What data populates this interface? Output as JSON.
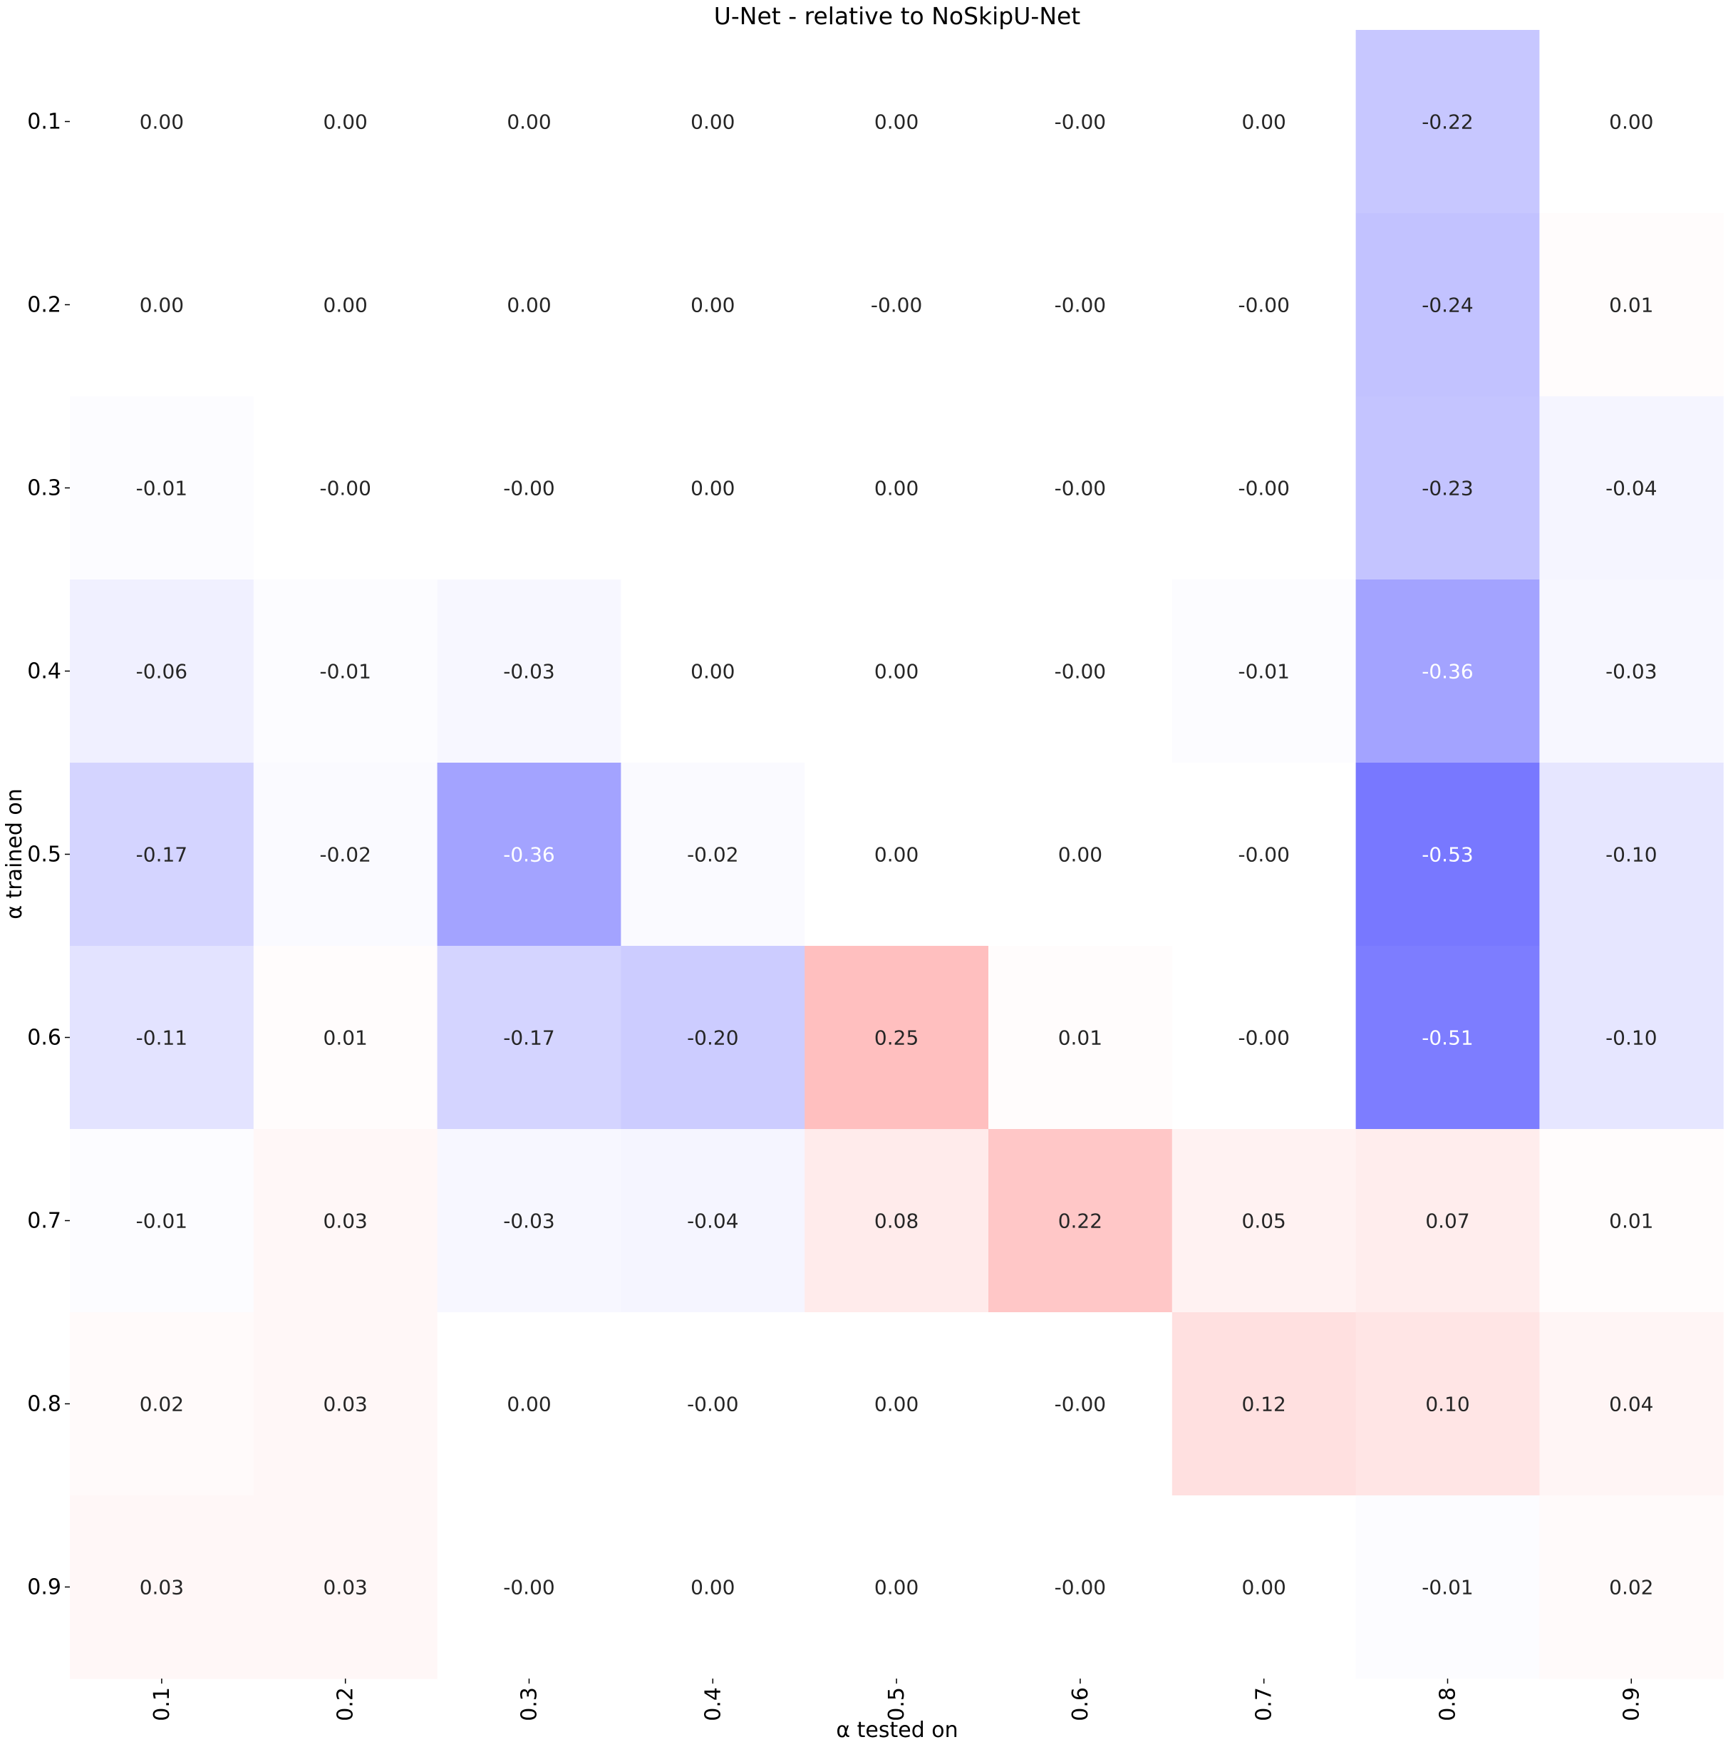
{
  "chart_data": {
    "type": "heatmap",
    "title": "U-Net - relative to NoSkipU-Net",
    "xlabel": "α tested on",
    "ylabel": "α trained on",
    "x_categories": [
      "0.1",
      "0.2",
      "0.3",
      "0.4",
      "0.5",
      "0.6",
      "0.7",
      "0.8",
      "0.9"
    ],
    "y_categories": [
      "0.1",
      "0.2",
      "0.3",
      "0.4",
      "0.5",
      "0.6",
      "0.7",
      "0.8",
      "0.9"
    ],
    "values": [
      [
        0.0,
        0.0,
        0.0,
        0.0,
        0.0,
        -0.0,
        0.0,
        -0.22,
        0.0
      ],
      [
        0.0,
        0.0,
        0.0,
        0.0,
        -0.0,
        -0.0,
        -0.0,
        -0.24,
        0.01
      ],
      [
        -0.01,
        -0.0,
        -0.0,
        0.0,
        0.0,
        -0.0,
        -0.0,
        -0.23,
        -0.04
      ],
      [
        -0.06,
        -0.01,
        -0.03,
        0.0,
        0.0,
        -0.0,
        -0.01,
        -0.36,
        -0.03
      ],
      [
        -0.17,
        -0.02,
        -0.36,
        -0.02,
        0.0,
        0.0,
        -0.0,
        -0.53,
        -0.1
      ],
      [
        -0.11,
        0.01,
        -0.17,
        -0.2,
        0.25,
        0.01,
        -0.0,
        -0.51,
        -0.1
      ],
      [
        -0.01,
        0.03,
        -0.03,
        -0.04,
        0.08,
        0.22,
        0.05,
        0.07,
        0.01
      ],
      [
        0.02,
        0.03,
        0.0,
        -0.0,
        0.0,
        -0.0,
        0.12,
        0.1,
        0.04
      ],
      [
        0.03,
        0.03,
        -0.0,
        0.0,
        0.0,
        -0.0,
        0.0,
        -0.01,
        0.02
      ]
    ],
    "labels": [
      [
        "0.00",
        "0.00",
        "0.00",
        "0.00",
        "0.00",
        "-0.00",
        "0.00",
        "-0.22",
        "0.00"
      ],
      [
        "0.00",
        "0.00",
        "0.00",
        "0.00",
        "-0.00",
        "-0.00",
        "-0.00",
        "-0.24",
        "0.01"
      ],
      [
        "-0.01",
        "-0.00",
        "-0.00",
        "0.00",
        "0.00",
        "-0.00",
        "-0.00",
        "-0.23",
        "-0.04"
      ],
      [
        "-0.06",
        "-0.01",
        "-0.03",
        "0.00",
        "0.00",
        "-0.00",
        "-0.01",
        "-0.36",
        "-0.03"
      ],
      [
        "-0.17",
        "-0.02",
        "-0.36",
        "-0.02",
        "0.00",
        "0.00",
        "-0.00",
        "-0.53",
        "-0.10"
      ],
      [
        "-0.11",
        "0.01",
        "-0.17",
        "-0.20",
        "0.25",
        "0.01",
        "-0.00",
        "-0.51",
        "-0.10"
      ],
      [
        "-0.01",
        "0.03",
        "-0.03",
        "-0.04",
        "0.08",
        "0.22",
        "0.05",
        "0.07",
        "0.01"
      ],
      [
        "0.02",
        "0.03",
        "0.00",
        "-0.00",
        "0.00",
        "-0.00",
        "0.12",
        "0.10",
        "0.04"
      ],
      [
        "0.03",
        "0.03",
        "-0.00",
        "0.00",
        "0.00",
        "-0.00",
        "0.00",
        "-0.01",
        "0.02"
      ]
    ],
    "colormap": "bwr",
    "color_range": [
      -1,
      1
    ],
    "colorbar": false,
    "grid": false
  }
}
